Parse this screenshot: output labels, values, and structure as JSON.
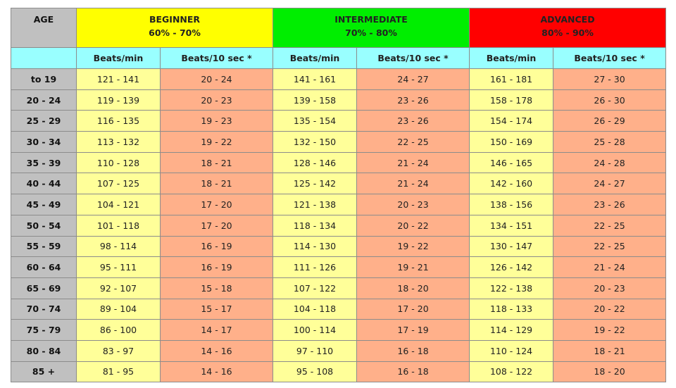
{
  "header": {
    "age_label": "AGE",
    "levels": [
      {
        "name": "BEGINNER",
        "range": "60% - 70%",
        "color": "#ffff00"
      },
      {
        "name": "INTERMEDIATE",
        "range": "70% - 80%",
        "color": "#00ee00"
      },
      {
        "name": "ADVANCED",
        "range": "80% - 90%",
        "color": "#ff0000"
      }
    ],
    "sub_bpm": "Beats/min",
    "sub_10s": "Beats/10 sec *"
  },
  "colors": {
    "age": "#c0c0c0",
    "subheader": "#99ffff",
    "bpm_cell": "#ffff99",
    "ten_sec_cell": "#ffb08a"
  },
  "rows": [
    [
      "to 19",
      "121 - 141",
      "20 - 24",
      "141 - 161",
      "24 - 27",
      "161 - 181",
      "27 - 30"
    ],
    [
      "20 - 24",
      "119 - 139",
      "20 - 23",
      "139 - 158",
      "23 - 26",
      "158 - 178",
      "26 - 30"
    ],
    [
      "25 - 29",
      "116 - 135",
      "19 - 23",
      "135 - 154",
      "23 - 26",
      "154 - 174",
      "26 - 29"
    ],
    [
      "30 - 34",
      "113 - 132",
      "19 - 22",
      "132 - 150",
      "22 - 25",
      "150 - 169",
      "25 - 28"
    ],
    [
      "35 - 39",
      "110 - 128",
      "18 - 21",
      "128 - 146",
      "21 - 24",
      "146 - 165",
      "24 - 28"
    ],
    [
      "40 - 44",
      "107 - 125",
      "18 - 21",
      "125 - 142",
      "21 - 24",
      "142 - 160",
      "24 - 27"
    ],
    [
      "45 - 49",
      "104 - 121",
      "17 - 20",
      "121 - 138",
      "20 - 23",
      "138 - 156",
      "23 - 26"
    ],
    [
      "50 - 54",
      "101 - 118",
      "17 - 20",
      "118 - 134",
      "20 - 22",
      "134 - 151",
      "22 - 25"
    ],
    [
      "55 - 59",
      "98 - 114",
      "16 - 19",
      "114 - 130",
      "19 - 22",
      "130 - 147",
      "22 - 25"
    ],
    [
      "60 - 64",
      "95 - 111",
      "16 - 19",
      "111 - 126",
      "19 - 21",
      "126 - 142",
      "21 - 24"
    ],
    [
      "65 - 69",
      "92 - 107",
      "15 - 18",
      "107 - 122",
      "18 - 20",
      "122 - 138",
      "20 - 23"
    ],
    [
      "70 - 74",
      "89 - 104",
      "15 - 17",
      "104 - 118",
      "17 - 20",
      "118 - 133",
      "20 - 22"
    ],
    [
      "75 - 79",
      "86 - 100",
      "14 - 17",
      "100 - 114",
      "17 - 19",
      "114 - 129",
      "19 - 22"
    ],
    [
      "80 - 84",
      "83 - 97",
      "14 - 16",
      "97 - 110",
      "16 - 18",
      "110 - 124",
      "18 - 21"
    ],
    [
      "85 +",
      "81 - 95",
      "14 - 16",
      "95 - 108",
      "16 - 18",
      "108 - 122",
      "18 - 20"
    ]
  ]
}
